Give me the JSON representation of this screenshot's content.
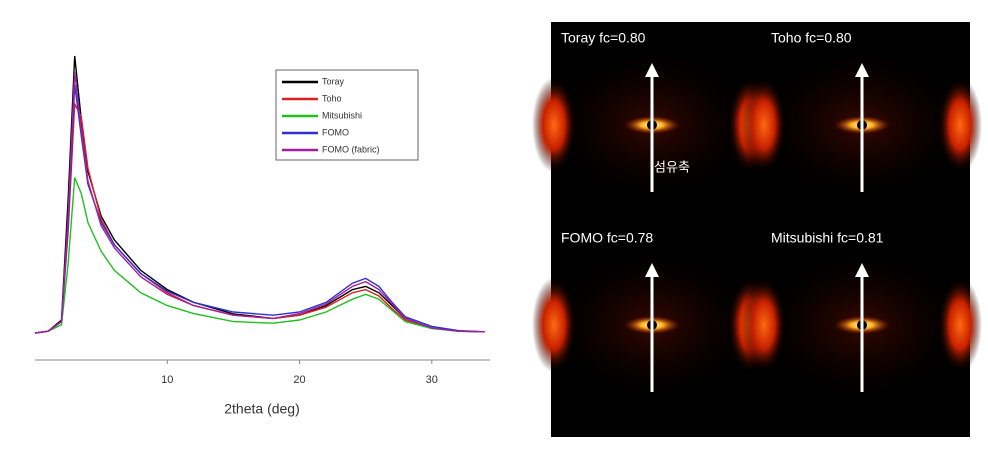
{
  "chart_data": {
    "type": "line",
    "x_label": "2theta (deg)",
    "x": [
      0,
      1,
      2,
      2.5,
      3,
      3.5,
      4,
      5,
      6,
      8,
      10,
      12,
      15,
      18,
      20,
      22,
      24,
      25,
      26,
      27,
      28,
      30,
      32,
      34
    ],
    "series": [
      {
        "name": "Toray",
        "color": "#000000",
        "values": [
          8.4,
          9,
          12.5,
          50,
          95,
          75,
          59,
          45,
          37.5,
          28,
          22,
          18,
          14.4,
          13,
          14,
          17,
          22,
          23,
          21,
          17,
          13,
          10,
          9,
          8.8
        ]
      },
      {
        "name": "Toho",
        "color": "#e02020",
        "values": [
          8.4,
          9,
          12,
          40,
          80,
          76,
          60,
          44,
          36,
          27,
          21,
          17,
          14,
          13,
          14,
          16.5,
          21,
          22,
          20,
          16,
          12.5,
          10,
          9,
          8.8
        ]
      },
      {
        "name": "Mitsubishi",
        "color": "#20c020",
        "values": [
          8.4,
          9,
          11,
          30,
          57,
          52,
          43,
          34,
          28,
          21,
          17,
          14.5,
          12,
          11.5,
          12.5,
          15,
          19,
          20.5,
          19,
          15.5,
          12,
          9.8,
          9,
          8.8
        ]
      },
      {
        "name": "FOMO",
        "color": "#3030d0",
        "values": [
          8.4,
          9,
          12,
          42,
          86,
          70,
          55,
          43,
          36,
          27,
          21.5,
          18,
          15,
          14,
          15,
          18,
          24,
          25.5,
          23,
          18,
          13.5,
          10.5,
          9.2,
          8.8
        ]
      },
      {
        "name": "FOMO (fabric)",
        "color": "#a020a0",
        "values": [
          8.4,
          9,
          12,
          45,
          90,
          72,
          56,
          42,
          35,
          26,
          20.5,
          17,
          14,
          13,
          14.5,
          17.5,
          23,
          24.5,
          22,
          17.5,
          13,
          10,
          9,
          8.8
        ]
      }
    ],
    "xlim": [
      0,
      34.4
    ],
    "xticks": [
      10,
      20,
      30
    ],
    "ylim": [
      0,
      100
    ]
  },
  "patterns": [
    {
      "label": "Toray fc=0.80"
    },
    {
      "label": "Toho fc=0.80"
    },
    {
      "label": "FOMO fc=0.78"
    },
    {
      "label": "Mitsubishi fc=0.81"
    }
  ],
  "fiber_axis_label": "섬유축"
}
